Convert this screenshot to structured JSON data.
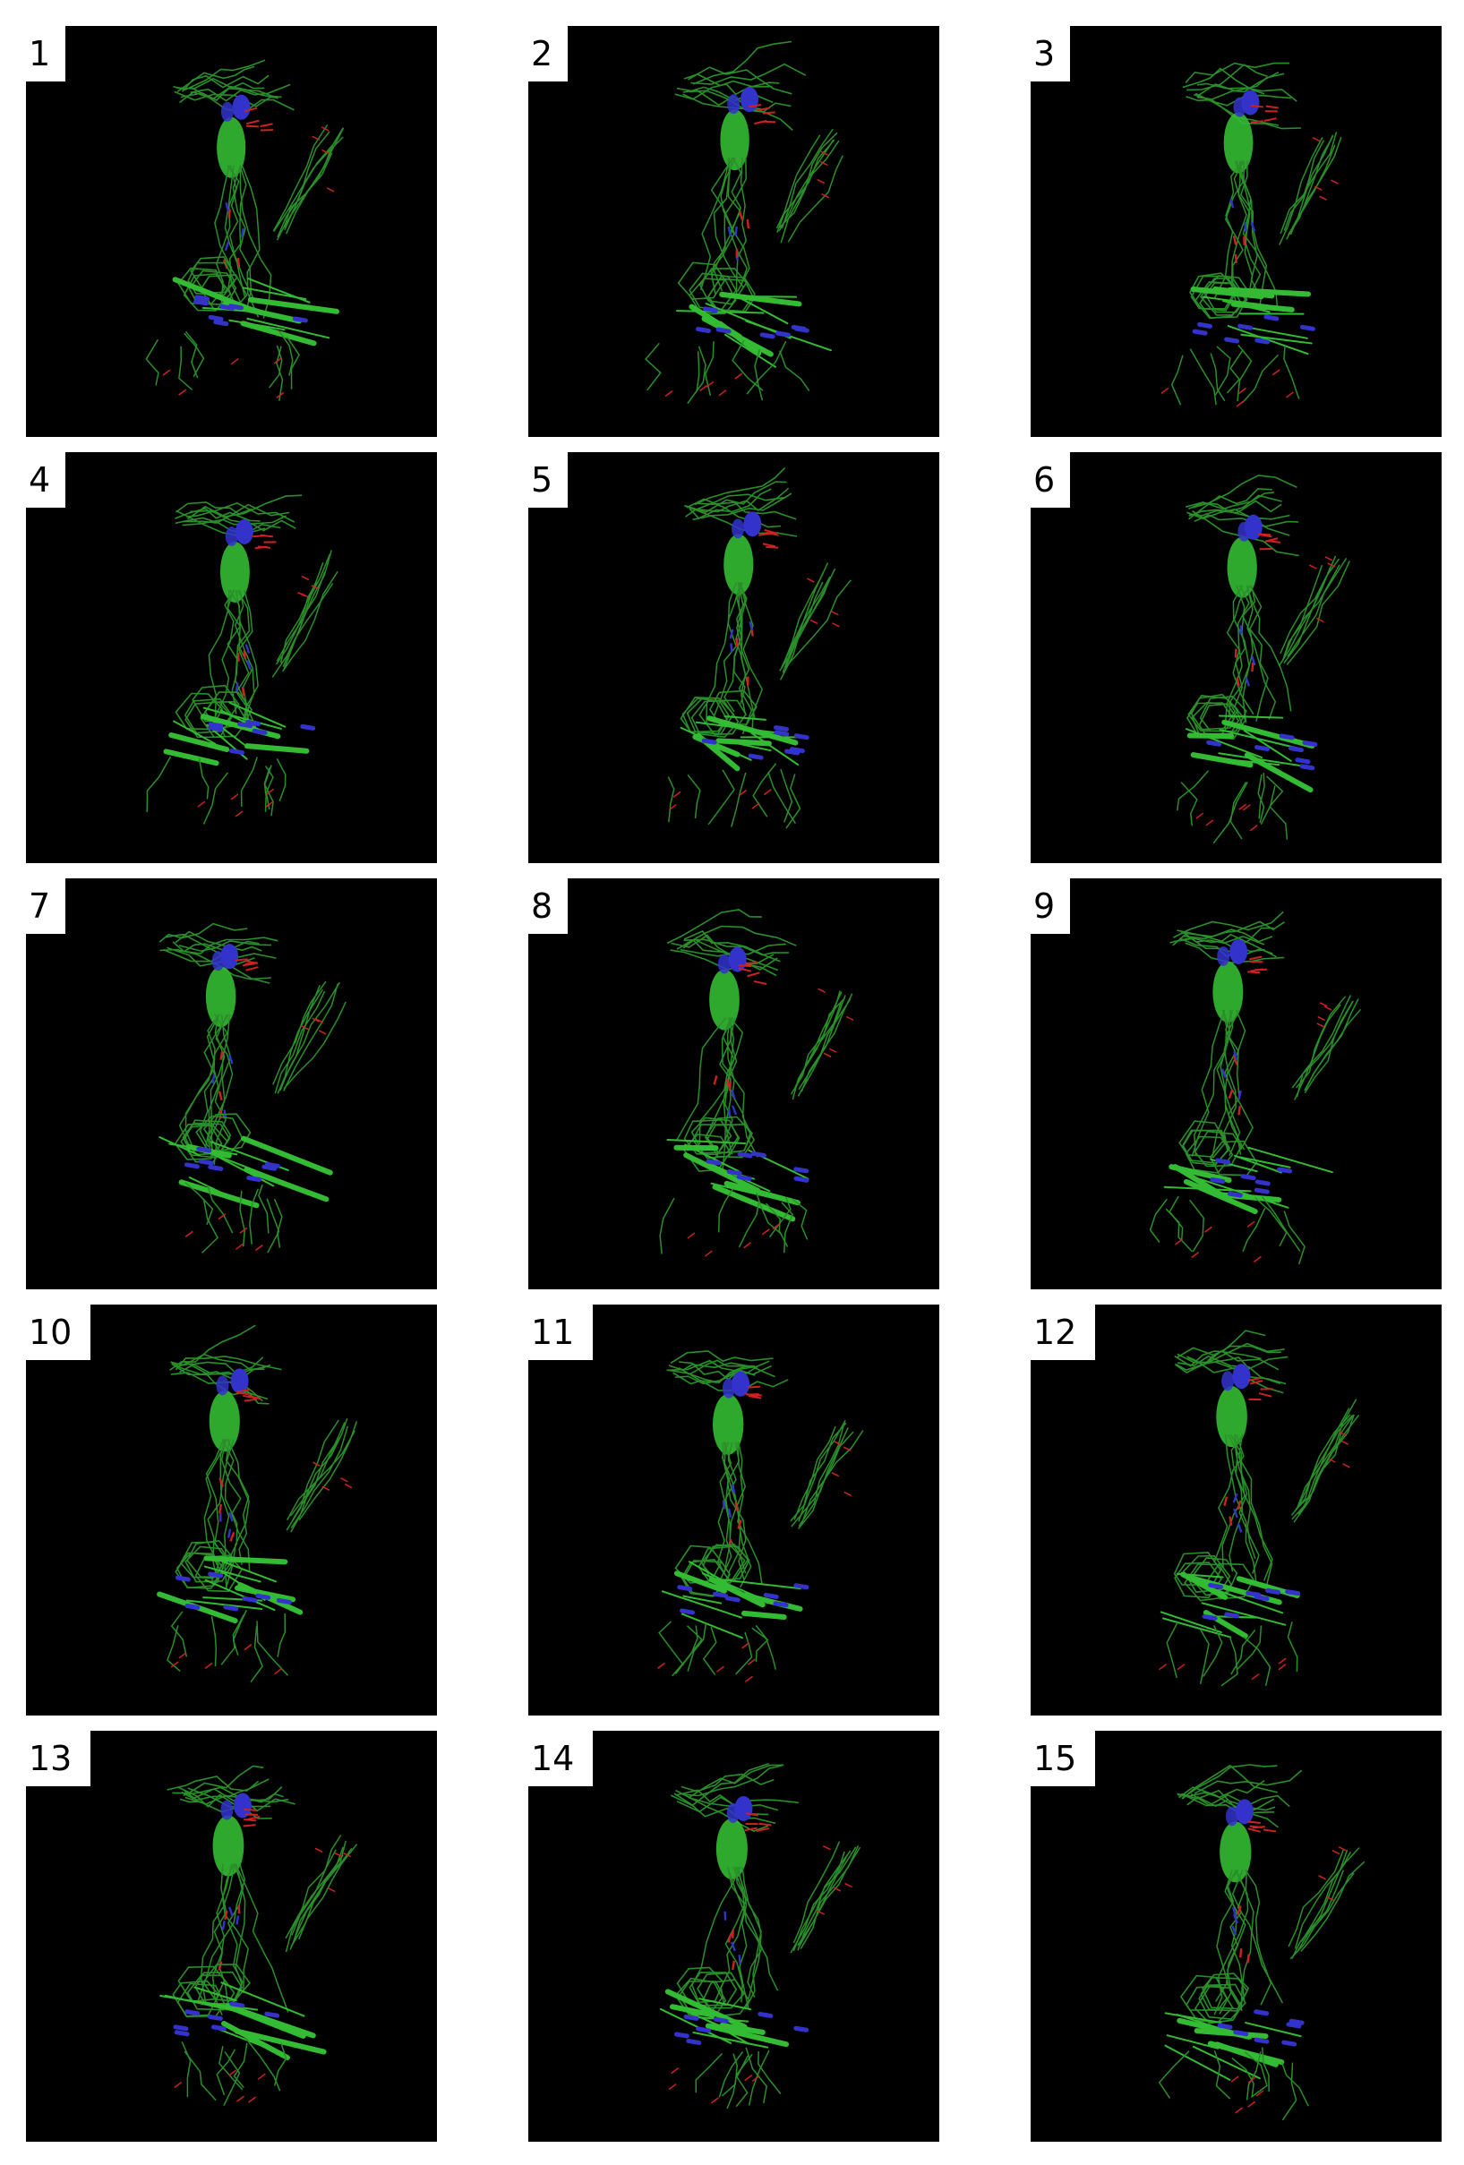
{
  "figure": {
    "panels": [
      {
        "label": "1"
      },
      {
        "label": "2"
      },
      {
        "label": "3"
      },
      {
        "label": "4"
      },
      {
        "label": "5"
      },
      {
        "label": "6"
      },
      {
        "label": "7"
      },
      {
        "label": "8"
      },
      {
        "label": "9"
      },
      {
        "label": "10"
      },
      {
        "label": "11"
      },
      {
        "label": "12"
      },
      {
        "label": "13"
      },
      {
        "label": "14"
      },
      {
        "label": "15"
      }
    ],
    "colors": {
      "background": "#000000",
      "carbon": "#33bb33",
      "carbon_dark": "#2a8f2a",
      "nitrogen": "#3333cc",
      "oxygen": "#cc2222",
      "label_bg": "#ffffff",
      "label_text": "#000000"
    }
  }
}
